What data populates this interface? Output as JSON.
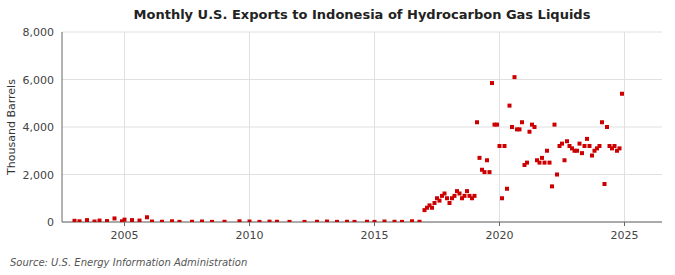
{
  "chart_data": {
    "type": "scatter",
    "title": "Monthly U.S. Exports to Indonesia of Hydrocarbon Gas Liquids",
    "y_label": "Thousand Barrels",
    "annotations": [
      "Source: U.S. Energy Information Administration"
    ],
    "color": "#CC0000",
    "marker": "square",
    "grid": true,
    "xlim": [
      2002.5,
      2026.5
    ],
    "xticks": [
      2005,
      2010,
      2015,
      2020,
      2025
    ],
    "ylim": [
      0,
      8000
    ],
    "yticks": [
      0,
      {
        "value": 2000,
        "label": "2,000"
      },
      {
        "value": 4000,
        "label": "4,000"
      },
      {
        "value": 6000,
        "label": "6,000"
      },
      {
        "value": 8000,
        "label": "8,000"
      }
    ],
    "x": [
      2003.0,
      2003.2,
      2003.5,
      2003.8,
      2004.0,
      2004.3,
      2004.6,
      2004.9,
      2005.0,
      2005.3,
      2005.6,
      2005.9,
      2006.1,
      2006.5,
      2006.9,
      2007.2,
      2007.7,
      2008.1,
      2008.5,
      2009.0,
      2009.6,
      2010.0,
      2010.4,
      2010.8,
      2011.1,
      2011.6,
      2012.2,
      2012.7,
      2013.1,
      2013.5,
      2013.9,
      2014.2,
      2014.7,
      2015.0,
      2015.4,
      2015.8,
      2016.1,
      2016.5,
      2016.8,
      2017.0,
      2017.1,
      2017.2,
      2017.3,
      2017.4,
      2017.5,
      2017.6,
      2017.7,
      2017.8,
      2017.9,
      2018.0,
      2018.1,
      2018.2,
      2018.3,
      2018.4,
      2018.5,
      2018.6,
      2018.7,
      2018.8,
      2018.9,
      2019.0,
      2019.1,
      2019.2,
      2019.3,
      2019.4,
      2019.5,
      2019.6,
      2019.7,
      2019.8,
      2019.9,
      2020.0,
      2020.1,
      2020.2,
      2020.3,
      2020.4,
      2020.5,
      2020.6,
      2020.7,
      2020.8,
      2020.9,
      2021.0,
      2021.1,
      2021.2,
      2021.3,
      2021.4,
      2021.5,
      2021.6,
      2021.7,
      2021.8,
      2021.9,
      2022.0,
      2022.1,
      2022.2,
      2022.3,
      2022.4,
      2022.5,
      2022.6,
      2022.7,
      2022.8,
      2022.9,
      2023.0,
      2023.1,
      2023.2,
      2023.3,
      2023.4,
      2023.5,
      2023.6,
      2023.7,
      2023.8,
      2023.9,
      2024.0,
      2024.1,
      2024.2,
      2024.3,
      2024.4,
      2024.5,
      2024.6,
      2024.7,
      2024.8,
      2024.9
    ],
    "values": [
      50,
      30,
      80,
      20,
      60,
      40,
      150,
      30,
      100,
      80,
      60,
      200,
      20,
      10,
      30,
      5,
      10,
      20,
      5,
      10,
      30,
      20,
      5,
      15,
      10,
      5,
      5,
      10,
      20,
      5,
      10,
      5,
      10,
      5,
      20,
      10,
      5,
      30,
      10,
      500,
      600,
      700,
      600,
      800,
      1000,
      900,
      1100,
      1200,
      1000,
      800,
      1000,
      1100,
      1300,
      1200,
      1000,
      1100,
      1300,
      1100,
      1000,
      1100,
      4200,
      2700,
      2200,
      2100,
      2600,
      2100,
      5850,
      4100,
      4100,
      3200,
      1000,
      3200,
      1400,
      4900,
      4000,
      6100,
      3900,
      3900,
      4200,
      2400,
      2500,
      3800,
      4100,
      4000,
      2600,
      2500,
      2700,
      2500,
      3000,
      2500,
      1500,
      4100,
      2000,
      3200,
      3300,
      2600,
      3400,
      3200,
      3100,
      3000,
      3000,
      3300,
      2900,
      3200,
      3500,
      3200,
      2800,
      3000,
      3100,
      3200,
      4200,
      1600,
      4000,
      3200,
      3100,
      3200,
      3000,
      3100,
      5400
    ]
  }
}
